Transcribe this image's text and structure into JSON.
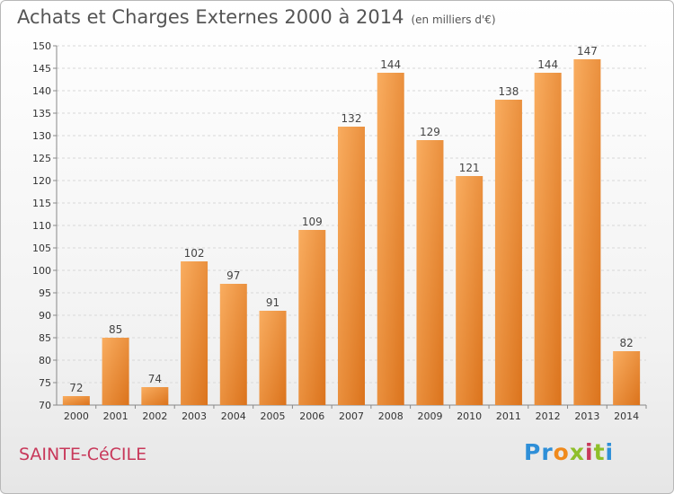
{
  "title": "Achats et Charges Externes 2000 à 2014",
  "unit_note": "(en milliers d'€)",
  "location": "SAINTE-CéCILE",
  "logo": {
    "text": "Proxiti",
    "letters": [
      "P",
      "r",
      "o",
      "x",
      "i",
      "t",
      "i"
    ],
    "colors": [
      "#2e8fd8",
      "#2e8fd8",
      "#f08a1c",
      "#8fbf2a",
      "#c8385a",
      "#8fbf2a",
      "#2e8fd8"
    ]
  },
  "colors": {
    "bar_light": "#f7a555",
    "bar_dark": "#e07a22",
    "grid": "#d8d8d8",
    "axis_text": "#333333"
  },
  "chart_data": {
    "type": "bar",
    "title": "Achats et Charges Externes 2000 à 2014",
    "subtitle": "(en milliers d'€)",
    "categories": [
      "2000",
      "2001",
      "2002",
      "2003",
      "2004",
      "2005",
      "2006",
      "2007",
      "2008",
      "2009",
      "2010",
      "2011",
      "2012",
      "2013",
      "2014"
    ],
    "values": [
      72,
      85,
      74,
      102,
      97,
      91,
      109,
      132,
      144,
      129,
      121,
      138,
      144,
      147,
      82
    ],
    "ylim": [
      70,
      150
    ],
    "yticks": [
      70,
      75,
      80,
      85,
      90,
      95,
      100,
      105,
      110,
      115,
      120,
      125,
      130,
      135,
      140,
      145,
      150
    ],
    "grid": "horizontal, dashed",
    "data_labels": true
  }
}
